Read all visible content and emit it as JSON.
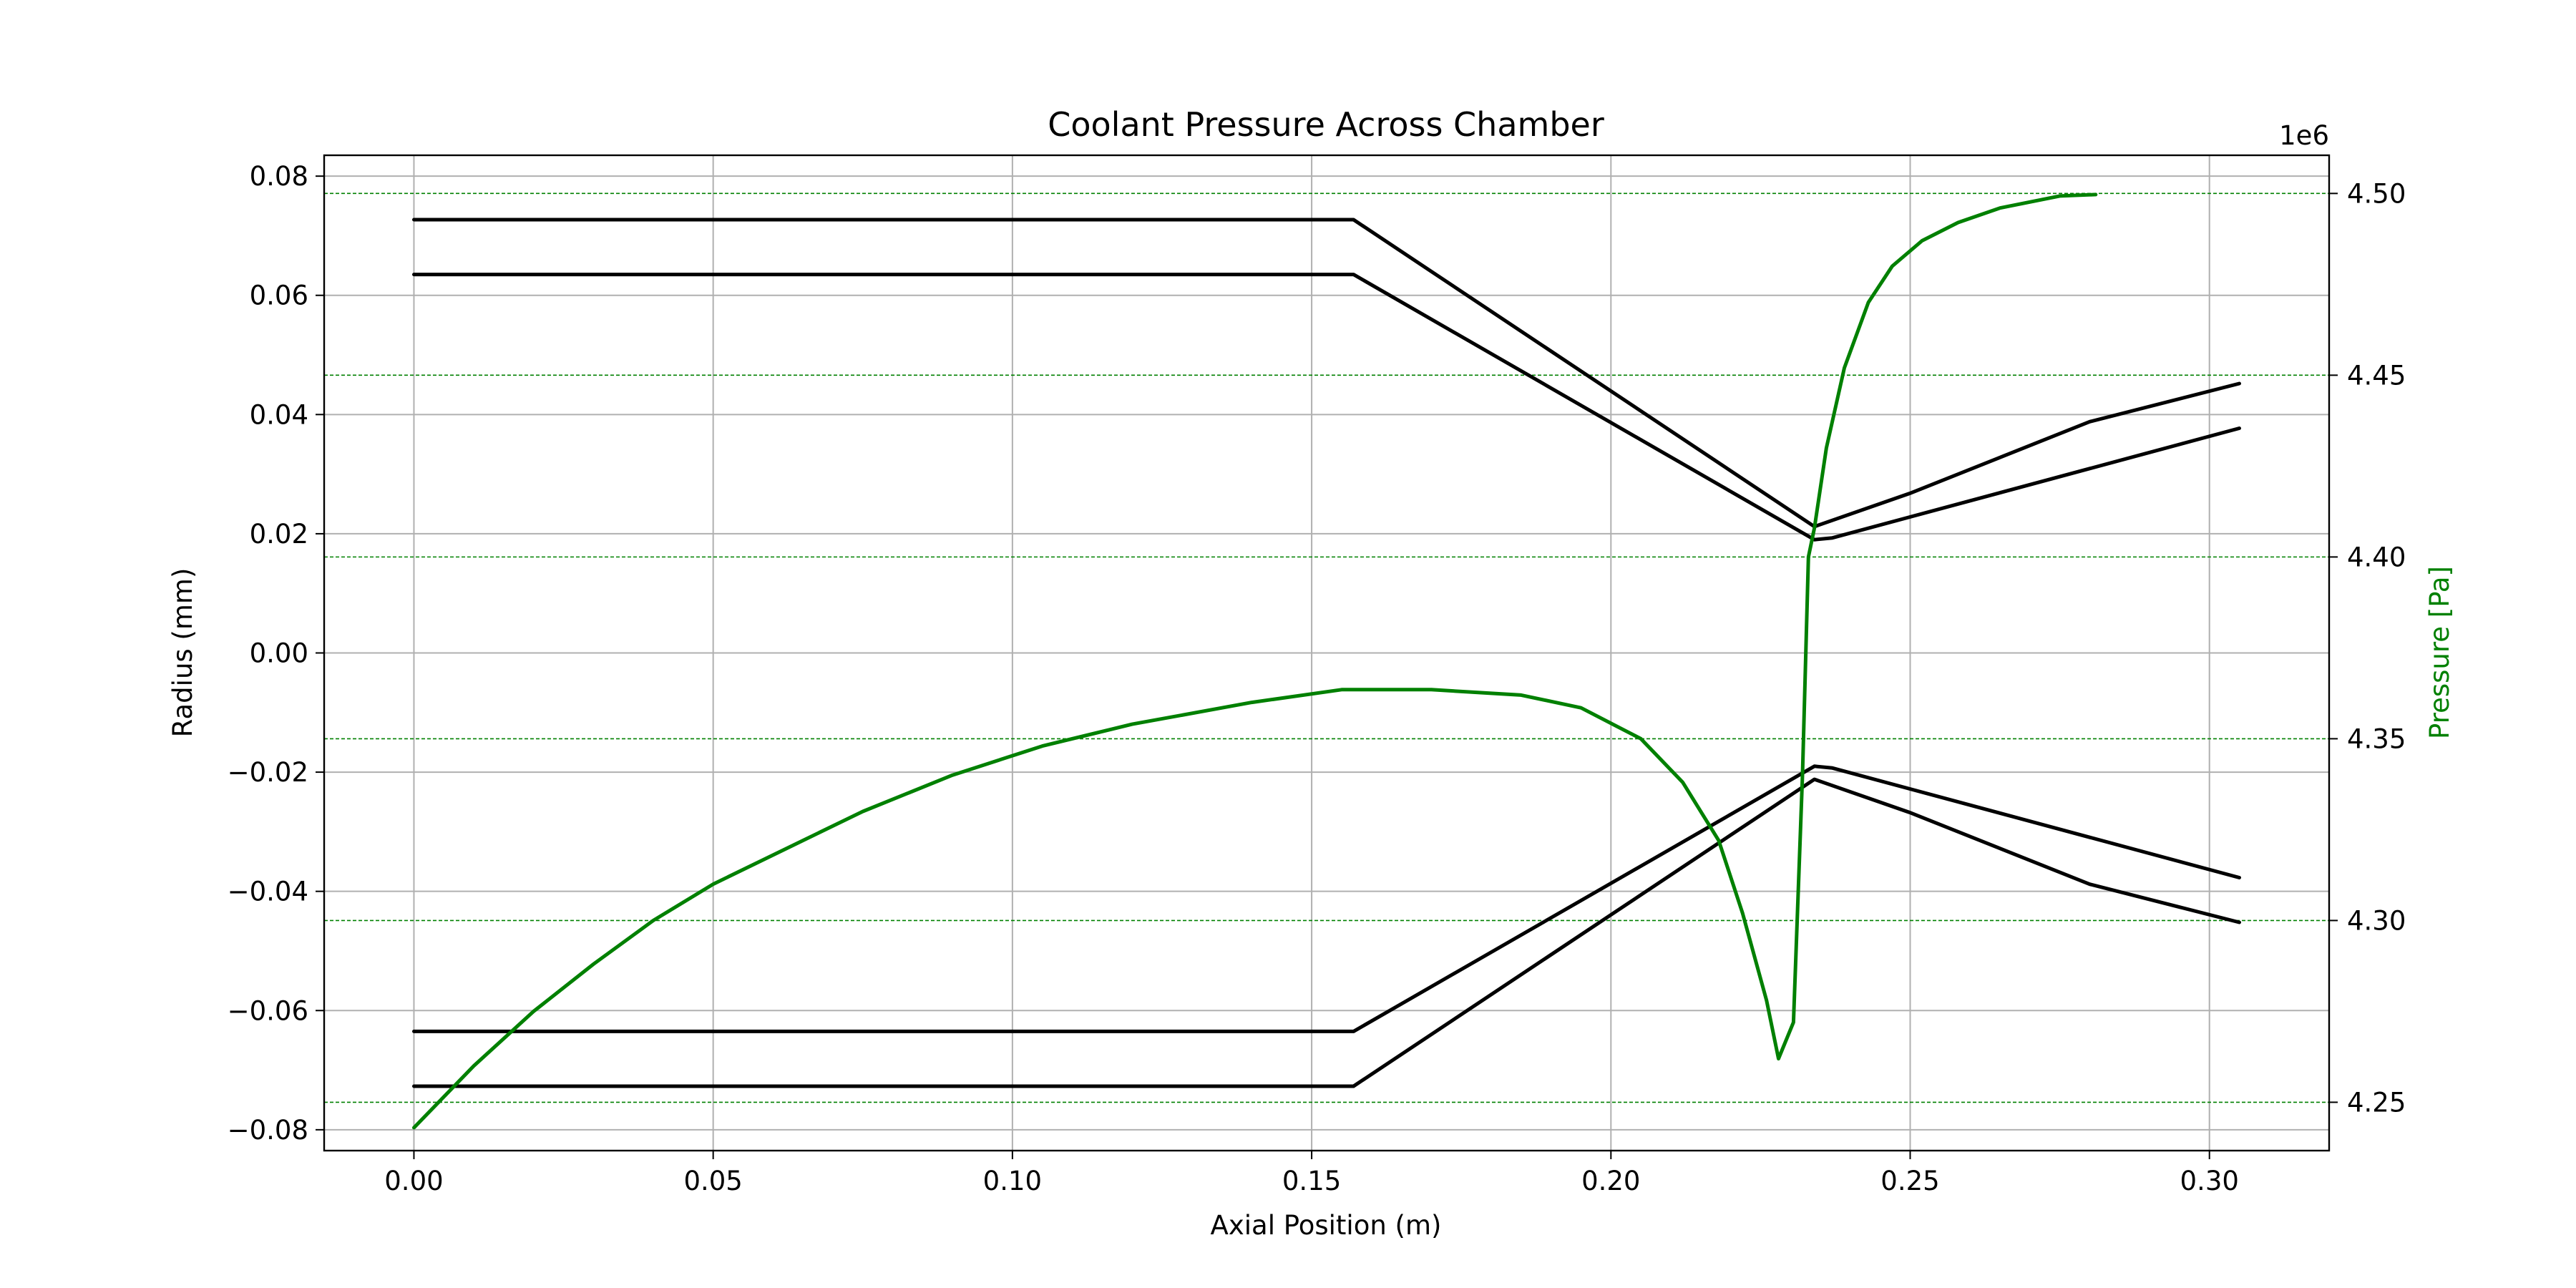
{
  "chart_data": {
    "type": "line",
    "title": "Coolant Pressure Across Chamber",
    "xlabel": "Axial Position (m)",
    "ylabel": "Radius (mm)",
    "y2label": "Pressure [Pa]",
    "y2_offset_label": "1e6",
    "xlim": [
      -0.015,
      0.32
    ],
    "ylim": [
      -0.0835,
      0.0835
    ],
    "y2lim": [
      4.2367,
      4.5105
    ],
    "x_ticks": [
      0.0,
      0.05,
      0.1,
      0.15,
      0.2,
      0.25,
      0.3
    ],
    "x_tick_labels": [
      "0.00",
      "0.05",
      "0.10",
      "0.15",
      "0.20",
      "0.25",
      "0.30"
    ],
    "y_ticks": [
      -0.08,
      -0.06,
      -0.04,
      -0.02,
      0.0,
      0.02,
      0.04,
      0.06,
      0.08
    ],
    "y_tick_labels": [
      "−0.08",
      "−0.06",
      "−0.04",
      "−0.02",
      "0.00",
      "0.02",
      "0.04",
      "0.06",
      "0.08"
    ],
    "y2_ticks": [
      4.25,
      4.3,
      4.35,
      4.4,
      4.45,
      4.5
    ],
    "y2_tick_labels": [
      "4.25",
      "4.30",
      "4.35",
      "4.40",
      "4.45",
      "4.50"
    ],
    "grid": true,
    "y2_grid": "dashed",
    "colors": {
      "contour": "#000000",
      "pressure": "#008000",
      "grid": "#b0b0b0"
    },
    "series": [
      {
        "axis": "left",
        "points": [
          [
            0.0,
            0.0727
          ],
          [
            0.157,
            0.0727
          ],
          [
            0.234,
            0.0212
          ],
          [
            0.25,
            0.0268
          ],
          [
            0.28,
            0.0388
          ],
          [
            0.305,
            0.0452
          ]
        ]
      },
      {
        "axis": "left",
        "points": [
          [
            0.0,
            0.0635
          ],
          [
            0.157,
            0.0635
          ],
          [
            0.234,
            0.019
          ],
          [
            0.237,
            0.0193
          ],
          [
            0.305,
            0.0377
          ]
        ]
      },
      {
        "axis": "left",
        "points": [
          [
            0.0,
            -0.0635
          ],
          [
            0.157,
            -0.0635
          ],
          [
            0.234,
            -0.019
          ],
          [
            0.237,
            -0.0193
          ],
          [
            0.305,
            -0.0377
          ]
        ]
      },
      {
        "axis": "left",
        "points": [
          [
            0.0,
            -0.0727
          ],
          [
            0.157,
            -0.0727
          ],
          [
            0.234,
            -0.0212
          ],
          [
            0.25,
            -0.0268
          ],
          [
            0.28,
            -0.0388
          ],
          [
            0.305,
            -0.0452
          ]
        ]
      },
      {
        "axis": "right",
        "points": [
          [
            0.0,
            4.243
          ],
          [
            0.01,
            4.26
          ],
          [
            0.02,
            4.275
          ],
          [
            0.03,
            4.288
          ],
          [
            0.04,
            4.3
          ],
          [
            0.05,
            4.31
          ],
          [
            0.065,
            4.322
          ],
          [
            0.075,
            4.33
          ],
          [
            0.09,
            4.34
          ],
          [
            0.105,
            4.348
          ],
          [
            0.12,
            4.354
          ],
          [
            0.14,
            4.36
          ],
          [
            0.155,
            4.3635
          ],
          [
            0.17,
            4.3635
          ],
          [
            0.185,
            4.362
          ],
          [
            0.195,
            4.3585
          ],
          [
            0.205,
            4.35
          ],
          [
            0.212,
            4.338
          ],
          [
            0.218,
            4.322
          ],
          [
            0.222,
            4.302
          ],
          [
            0.226,
            4.278
          ],
          [
            0.228,
            4.262
          ],
          [
            0.2305,
            4.272
          ],
          [
            0.232,
            4.34
          ],
          [
            0.233,
            4.4
          ],
          [
            0.234,
            4.408
          ],
          [
            0.236,
            4.43
          ],
          [
            0.239,
            4.452
          ],
          [
            0.243,
            4.47
          ],
          [
            0.247,
            4.48
          ],
          [
            0.252,
            4.487
          ],
          [
            0.258,
            4.492
          ],
          [
            0.265,
            4.496
          ],
          [
            0.275,
            4.4993
          ],
          [
            0.281,
            4.4997
          ]
        ]
      }
    ]
  }
}
